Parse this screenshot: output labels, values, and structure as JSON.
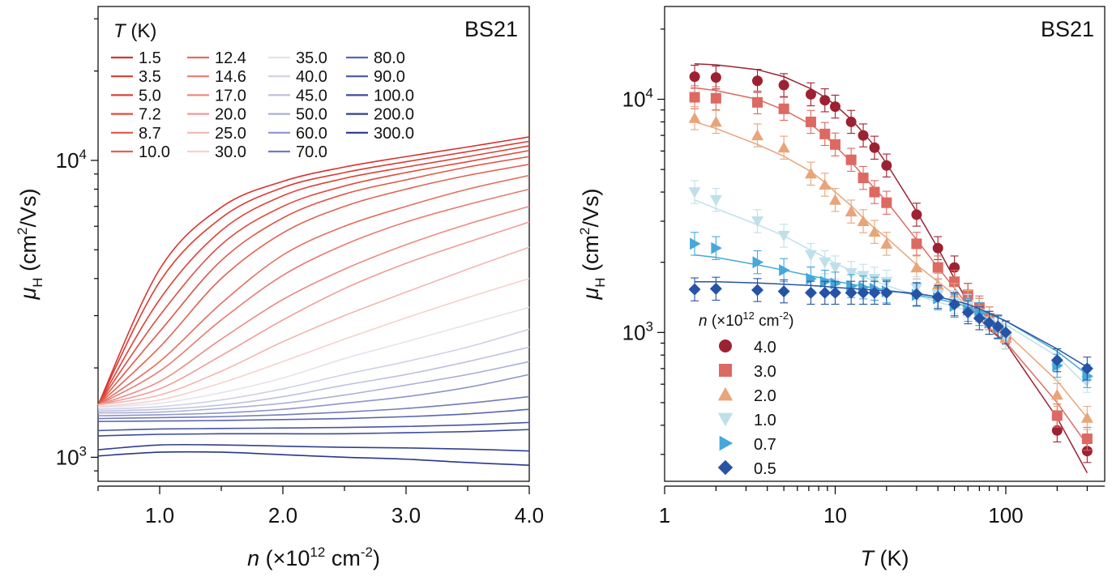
{
  "chart_data": [
    {
      "type": "line",
      "tag": "BS21",
      "xlabel": {
        "var": "n",
        "rest": " (×10",
        "sup": "12",
        "unit": " cm",
        "sup2": "-2",
        "close": ")"
      },
      "ylabel": {
        "var": "μ",
        "sub": "H",
        "rest": " (cm",
        "sup": "2",
        "unit": "/Vs)"
      },
      "xlim": [
        0.5,
        4.0
      ],
      "ylim": [
        830,
        33000
      ],
      "yscale": "log",
      "xticks": [
        "1.0",
        "2.0",
        "3.0",
        "4.0"
      ],
      "xtick_values": [
        1.0,
        2.0,
        3.0,
        4.0
      ],
      "yticks": [
        {
          "base": "10",
          "exp": "3",
          "value": 1000
        },
        {
          "base": "10",
          "exp": "4",
          "value": 10000
        }
      ],
      "legend_title": {
        "var": "T",
        "rest": " (K)"
      },
      "legend_placement": "top-left",
      "legend_cols": 4,
      "grid": false,
      "x": [
        0.5,
        1.0,
        1.5,
        2.0,
        2.5,
        3.0,
        3.5,
        4.0
      ],
      "series": [
        {
          "name": "1.5",
          "color": "#d8322e",
          "values": [
            1500,
            4300,
            6950,
            8500,
            9500,
            10300,
            11100,
            12000
          ]
        },
        {
          "name": "3.5",
          "color": "#d93b33",
          "values": [
            1500,
            3900,
            6400,
            8100,
            9100,
            9900,
            10700,
            11600
          ]
        },
        {
          "name": "5.0",
          "color": "#db4338",
          "values": [
            1500,
            3400,
            5800,
            7600,
            8700,
            9500,
            10300,
            11200
          ]
        },
        {
          "name": "7.2",
          "color": "#dc4d3f",
          "values": [
            1500,
            3000,
            5200,
            7000,
            8200,
            9100,
            9900,
            10800
          ]
        },
        {
          "name": "8.7",
          "color": "#de5748",
          "values": [
            1500,
            2650,
            4600,
            6400,
            7700,
            8600,
            9500,
            10300
          ]
        },
        {
          "name": "10.0",
          "color": "#e06253",
          "values": [
            1500,
            2350,
            4000,
            5700,
            7000,
            8000,
            8900,
            9700
          ]
        },
        {
          "name": "12.4",
          "color": "#e36e61",
          "values": [
            1500,
            2100,
            3300,
            4800,
            6000,
            7000,
            8000,
            8900
          ]
        },
        {
          "name": "14.6",
          "color": "#e67c71",
          "values": [
            1500,
            1950,
            2900,
            4100,
            5200,
            6200,
            7100,
            8000
          ]
        },
        {
          "name": "17.0",
          "color": "#ea8c83",
          "values": [
            1500,
            1800,
            2500,
            3400,
            4300,
            5200,
            6100,
            7000
          ]
        },
        {
          "name": "20.0",
          "color": "#ee9d96",
          "values": [
            1500,
            1700,
            2200,
            2900,
            3700,
            4500,
            5300,
            6200
          ]
        },
        {
          "name": "25.0",
          "color": "#f2b6b1",
          "values": [
            1500,
            1620,
            1950,
            2450,
            3000,
            3600,
            4300,
            5100
          ]
        },
        {
          "name": "30.0",
          "color": "#f4d2cf",
          "values": [
            1480,
            1560,
            1780,
            2100,
            2500,
            2950,
            3450,
            4000
          ]
        },
        {
          "name": "35.0",
          "color": "#e3e3ee",
          "values": [
            1470,
            1520,
            1650,
            1850,
            2150,
            2450,
            2800,
            3200
          ]
        },
        {
          "name": "40.0",
          "color": "#cfd1e6",
          "values": [
            1450,
            1480,
            1560,
            1700,
            1900,
            2100,
            2350,
            2700
          ]
        },
        {
          "name": "45.0",
          "color": "#bec1de",
          "values": [
            1430,
            1450,
            1500,
            1600,
            1750,
            1900,
            2100,
            2350
          ]
        },
        {
          "name": "50.0",
          "color": "#acb0d6",
          "values": [
            1410,
            1420,
            1460,
            1520,
            1620,
            1750,
            1900,
            2100
          ]
        },
        {
          "name": "60.0",
          "color": "#8e95c8",
          "values": [
            1380,
            1390,
            1410,
            1450,
            1520,
            1600,
            1720,
            1900
          ]
        },
        {
          "name": "70.0",
          "color": "#727bba",
          "values": [
            1350,
            1360,
            1370,
            1390,
            1420,
            1460,
            1520,
            1600
          ]
        },
        {
          "name": "80.0",
          "color": "#5965ae",
          "values": [
            1320,
            1325,
            1330,
            1340,
            1350,
            1370,
            1400,
            1450
          ]
        },
        {
          "name": "90.0",
          "color": "#4855a4",
          "values": [
            1230,
            1245,
            1250,
            1255,
            1260,
            1270,
            1285,
            1310
          ]
        },
        {
          "name": "100.0",
          "color": "#3d4a9c",
          "values": [
            1180,
            1195,
            1200,
            1200,
            1200,
            1210,
            1220,
            1240
          ]
        },
        {
          "name": "200.0",
          "color": "#323f93",
          "values": [
            1060,
            1100,
            1100,
            1090,
            1080,
            1075,
            1065,
            1050
          ]
        },
        {
          "name": "300.0",
          "color": "#2a368b",
          "values": [
            1010,
            1040,
            1040,
            1020,
            1000,
            985,
            960,
            940
          ]
        }
      ]
    },
    {
      "type": "scatter",
      "tag": "BS21",
      "xlabel": {
        "var": "T",
        "rest": " (K)"
      },
      "ylabel": {
        "var": "μ",
        "sub": "H",
        "rest": " (cm",
        "sup": "2",
        "unit": "/Vs)"
      },
      "xlim": [
        1.0,
        380
      ],
      "ylim": [
        230,
        25000
      ],
      "xscale": "log",
      "yscale": "log",
      "xticks": [
        "1",
        "10",
        "100"
      ],
      "xtick_values": [
        1,
        10,
        100
      ],
      "yticks": [
        {
          "base": "10",
          "exp": "3",
          "value": 1000
        },
        {
          "base": "10",
          "exp": "4",
          "value": 10000
        }
      ],
      "legend_title": {
        "var": "n",
        "rest": " (×10",
        "sup": "12",
        "unit": " cm",
        "sup2": "-2",
        "close": ")"
      },
      "legend_placement": "bottom-left",
      "grid": false,
      "x": [
        1.5,
        2.0,
        3.5,
        5.0,
        7.2,
        8.7,
        10.0,
        12.4,
        14.6,
        17.0,
        20.0,
        30.0,
        40.0,
        50.0,
        60.0,
        70.0,
        80.0,
        90.0,
        100.0,
        200.0,
        300.0
      ],
      "series": [
        {
          "name": "4.0",
          "marker": "circle",
          "color": "#9c2232",
          "values": [
            12500,
            12400,
            12000,
            11500,
            10500,
            9900,
            9300,
            8000,
            7000,
            6200,
            5200,
            3200,
            2300,
            1900,
            1450,
            1250,
            1150,
            1050,
            950,
            380,
            310
          ],
          "fit": [
            14200,
            14050,
            13400,
            12500,
            11100,
            10200,
            9450,
            8200,
            7200,
            6300,
            5300,
            3300,
            2300,
            1700,
            1350,
            1150,
            1030,
            960,
            900,
            430,
            250
          ]
        },
        {
          "name": "3.0",
          "marker": "square",
          "color": "#dc6a62",
          "values": [
            10200,
            10100,
            9700,
            9100,
            8000,
            7100,
            6400,
            5500,
            4600,
            4000,
            3600,
            2400,
            1900,
            1650,
            1450,
            1280,
            1150,
            1050,
            950,
            440,
            350
          ],
          "fit": [
            11200,
            10900,
            10000,
            9000,
            7800,
            7000,
            6300,
            5400,
            4700,
            4150,
            3650,
            2500,
            1900,
            1550,
            1300,
            1150,
            1050,
            970,
            910,
            500,
            330
          ]
        },
        {
          "name": "2.0",
          "marker": "triangle-up",
          "color": "#e8a57a",
          "values": [
            8300,
            8000,
            7000,
            6200,
            4800,
            4300,
            3700,
            3300,
            3000,
            2700,
            2400,
            1900,
            1600,
            1450,
            1350,
            1250,
            1150,
            1050,
            950,
            540,
            430
          ],
          "fit": [
            8000,
            7500,
            6400,
            5700,
            4900,
            4400,
            4000,
            3500,
            3100,
            2800,
            2550,
            1950,
            1650,
            1450,
            1300,
            1200,
            1120,
            1050,
            1000,
            620,
            430
          ]
        },
        {
          "name": "1.0",
          "marker": "triangle-down",
          "color": "#bfe0ea",
          "values": [
            4000,
            3700,
            3000,
            2600,
            2150,
            2000,
            1900,
            1800,
            1750,
            1700,
            1650,
            1550,
            1450,
            1350,
            1300,
            1200,
            1100,
            1050,
            950,
            700,
            620
          ],
          "fit": [
            3700,
            3400,
            2900,
            2600,
            2250,
            2100,
            1980,
            1840,
            1740,
            1660,
            1590,
            1440,
            1350,
            1290,
            1240,
            1190,
            1150,
            1110,
            1080,
            790,
            590
          ]
        },
        {
          "name": "0.7",
          "marker": "triangle-right",
          "color": "#46a8d8",
          "values": [
            2400,
            2300,
            2000,
            1850,
            1700,
            1650,
            1620,
            1580,
            1560,
            1540,
            1500,
            1450,
            1400,
            1300,
            1250,
            1200,
            1100,
            1050,
            1000,
            720,
            650
          ],
          "fit": [
            2150,
            2100,
            1950,
            1850,
            1750,
            1700,
            1660,
            1610,
            1580,
            1550,
            1520,
            1450,
            1390,
            1340,
            1290,
            1240,
            1200,
            1160,
            1120,
            830,
            660
          ]
        },
        {
          "name": "0.5",
          "marker": "diamond",
          "color": "#2653a6",
          "values": [
            1530,
            1540,
            1520,
            1500,
            1480,
            1480,
            1480,
            1480,
            1480,
            1480,
            1480,
            1460,
            1420,
            1320,
            1220,
            1150,
            1100,
            1060,
            1000,
            760,
            700
          ],
          "fit": [
            1650,
            1650,
            1630,
            1610,
            1590,
            1575,
            1560,
            1545,
            1530,
            1520,
            1505,
            1470,
            1420,
            1370,
            1320,
            1260,
            1210,
            1160,
            1120,
            850,
            710
          ]
        }
      ]
    }
  ]
}
